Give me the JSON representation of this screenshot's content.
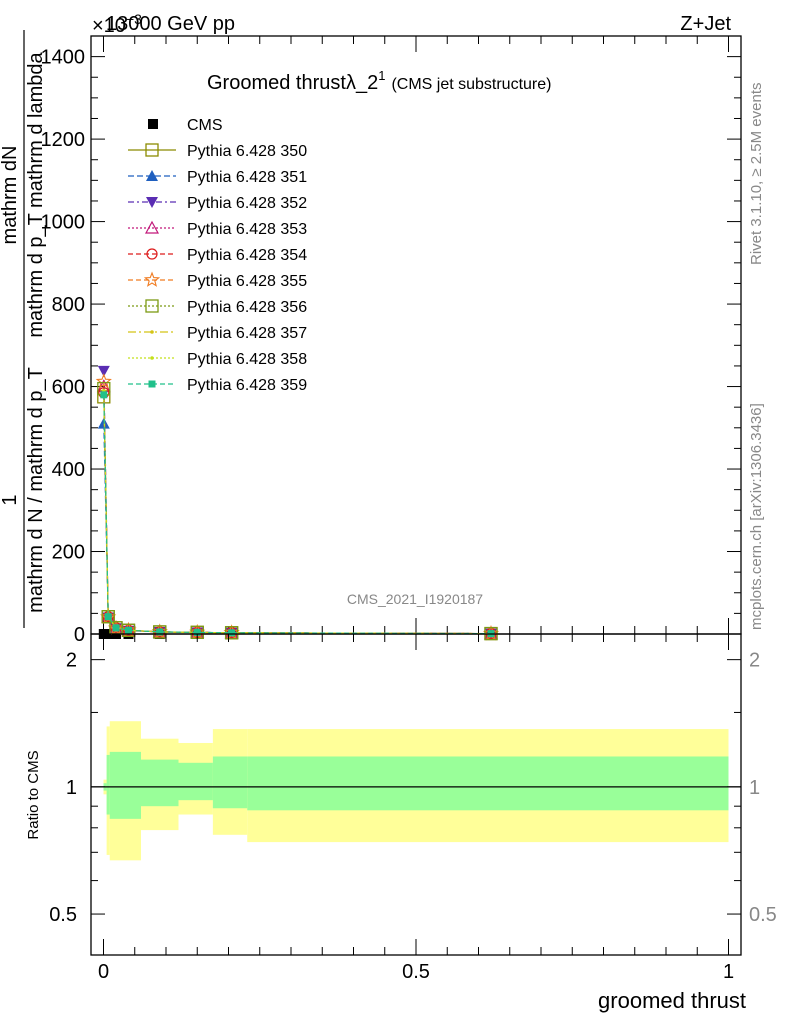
{
  "header": {
    "energy": "13000 GeV pp",
    "process": "Z+Jet",
    "exponent": "×10",
    "exponent_power": "−3"
  },
  "side_labels": {
    "rivet": "Rivet 3.1.10, ≥ 2.5M events",
    "mcplots": "mcplots.cern.ch [arXiv:1306.3436]"
  },
  "chart_data": [
    {
      "type": "line",
      "title": "Groomed thrustλ_2",
      "title_sup": "1",
      "subtitle": "(CMS jet substructure)",
      "ylabel_numerator": "1",
      "ylabel_line1": "mathrm dN",
      "ylabel_line2": "mathrm d p_T mathrm d lambda",
      "ylabel_denominator": "mathrm d N / mathrm d p_T",
      "watermark": "CMS_2021_I1920187",
      "ylim": [
        0,
        1450
      ],
      "xlim": [
        -0.02,
        1.02
      ],
      "y_tick_labels": [
        "0",
        "200",
        "400",
        "600",
        "800",
        "1000",
        "1200",
        "1400"
      ],
      "y_tick_values": [
        0,
        200,
        400,
        600,
        800,
        1000,
        1200,
        1400
      ],
      "x": [
        0.0005,
        0.0075,
        0.02,
        0.04,
        0.09,
        0.15,
        0.205,
        0.62
      ],
      "series": [
        {
          "name": "CMS",
          "color": "#000000",
          "marker": "square-filled",
          "dash": "",
          "values": [
            0,
            0,
            0,
            0,
            0,
            0,
            0,
            0
          ]
        },
        {
          "name": "Pythia 6.428 350",
          "color": "#8b8b00",
          "marker": "square-open",
          "dash": "",
          "values": [
            575,
            42,
            15,
            9,
            5,
            4,
            3,
            1
          ]
        },
        {
          "name": "Pythia 6.428 351",
          "color": "#1f5fbf",
          "marker": "triangle-up-filled",
          "dash": "6,3",
          "values": [
            510,
            44,
            15,
            9,
            5,
            4,
            3,
            1
          ]
        },
        {
          "name": "Pythia 6.428 352",
          "color": "#5a2db3",
          "marker": "triangle-down-filled",
          "dash": "6,3,2,3",
          "values": [
            638,
            40,
            14,
            8,
            5,
            4,
            3,
            1
          ]
        },
        {
          "name": "Pythia 6.428 353",
          "color": "#c2187a",
          "marker": "triangle-up-open",
          "dash": "2,2",
          "values": [
            600,
            41,
            14,
            9,
            5,
            4,
            3,
            1
          ]
        },
        {
          "name": "Pythia 6.428 354",
          "color": "#dd1c1c",
          "marker": "circle-open",
          "dash": "5,3",
          "values": [
            585,
            42,
            15,
            9,
            5,
            4,
            3,
            1
          ]
        },
        {
          "name": "Pythia 6.428 355",
          "color": "#f07c22",
          "marker": "star-open",
          "dash": "5,3",
          "values": [
            612,
            41,
            14,
            9,
            5,
            4,
            3,
            1
          ]
        },
        {
          "name": "Pythia 6.428 356",
          "color": "#7c9a14",
          "marker": "square-open",
          "dash": "2,2",
          "values": [
            595,
            42,
            15,
            9,
            5,
            4,
            3,
            1
          ]
        },
        {
          "name": "Pythia 6.428 357",
          "color": "#d4c416",
          "marker": "dash-dot",
          "dash": "8,3,2,3",
          "values": [
            590,
            42,
            15,
            9,
            5,
            4,
            3,
            1
          ]
        },
        {
          "name": "Pythia 6.428 358",
          "color": "#c4e01a",
          "marker": "dot",
          "dash": "2,2",
          "values": [
            588,
            42,
            15,
            9,
            5,
            4,
            3,
            1
          ]
        },
        {
          "name": "Pythia 6.428 359",
          "color": "#20c08a",
          "marker": "square-filled-small",
          "dash": "5,3",
          "values": [
            580,
            42,
            15,
            9,
            5,
            4,
            3,
            1
          ]
        }
      ]
    },
    {
      "type": "area",
      "ylabel": "Ratio to CMS",
      "xlabel": "groomed thrust",
      "ylim": [
        0.4,
        2.3
      ],
      "log_scale_y": true,
      "y_tick_labels": [
        "0.5",
        "1",
        "2"
      ],
      "y_tick_values": [
        0.5,
        1,
        2
      ],
      "x_tick_labels": [
        "0",
        "0.5",
        "1"
      ],
      "x_tick_values": [
        0,
        0.5,
        1
      ],
      "reference_line": 1,
      "bin_edges": [
        0.0,
        0.005,
        0.01,
        0.06,
        0.12,
        0.175,
        0.23,
        1.0
      ],
      "outer_band": {
        "color": "#ffff99",
        "low": [
          0.96,
          0.69,
          0.67,
          0.79,
          0.86,
          0.77,
          0.74
        ],
        "high": [
          1.04,
          1.39,
          1.43,
          1.3,
          1.27,
          1.37,
          1.37
        ]
      },
      "inner_band": {
        "color": "#99ff99",
        "low": [
          0.98,
          0.86,
          0.84,
          0.9,
          0.93,
          0.89,
          0.88
        ],
        "high": [
          1.02,
          1.19,
          1.21,
          1.16,
          1.14,
          1.18,
          1.18
        ]
      }
    }
  ]
}
